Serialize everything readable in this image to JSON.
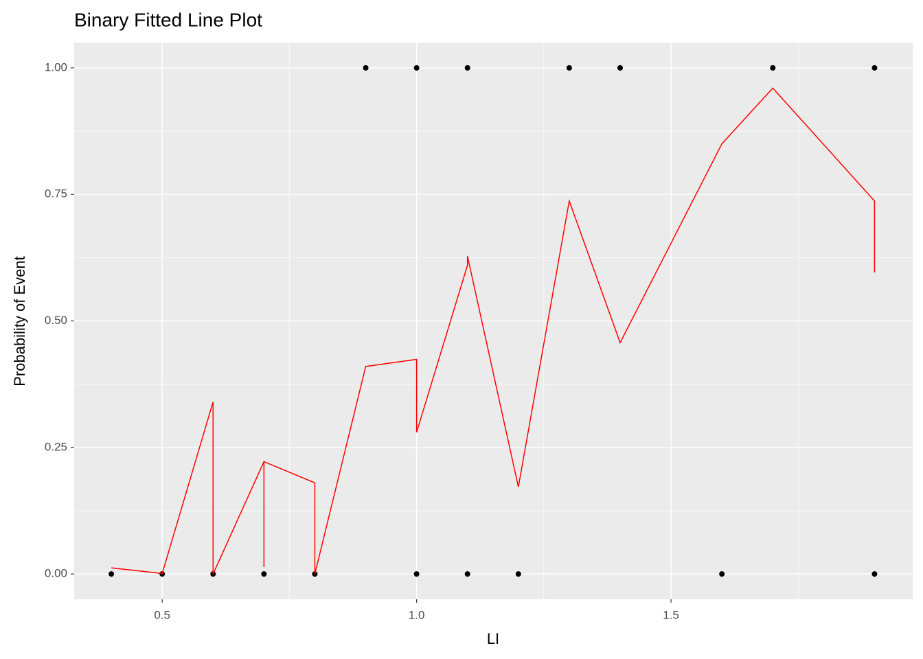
{
  "chart_data": {
    "type": "line",
    "title": "Binary Fitted Line Plot",
    "x_label": "LI",
    "y_label": "Probability of Event",
    "xlim": [
      0.327,
      1.975
    ],
    "ylim": [
      -0.05,
      1.05
    ],
    "xticks": [
      0.5,
      {
        "value": 1.0,
        "label": "1.0"
      },
      1.5
    ],
    "yticks": [
      {
        "value": 0,
        "label": "0.00"
      },
      {
        "value": 0.25,
        "label": "0.25"
      },
      {
        "value": 0.5,
        "label": "0.50"
      },
      {
        "value": 0.75,
        "label": "0.75"
      },
      {
        "value": 1,
        "label": "1.00"
      }
    ],
    "grid": true,
    "minor_grid": true,
    "series": [
      {
        "style": "points",
        "color": "#000000",
        "x": [
          0.9,
          1.0,
          1.1,
          1.3,
          1.4,
          1.7,
          1.9,
          0.4,
          0.5,
          0.6,
          0.7,
          0.8,
          1.0,
          1.1,
          1.2,
          1.6,
          1.9
        ],
        "values": [
          1,
          1,
          1,
          1,
          1,
          1,
          1,
          0,
          0,
          0,
          0,
          0,
          0,
          0,
          0,
          0,
          0
        ]
      },
      {
        "style": "line",
        "color": "#ff0000",
        "x": [
          0.4,
          0.5,
          0.6,
          0.6,
          0.7,
          0.7,
          0.7,
          0.8,
          0.8,
          0.9,
          1.0,
          1.0,
          1.1,
          1.1,
          1.2,
          1.3,
          1.4,
          1.6,
          1.7,
          1.9,
          1.9
        ],
        "values": [
          0.012,
          0.001,
          0.34,
          0.0,
          0.222,
          0.014,
          0.222,
          0.18,
          0.0,
          0.41,
          0.424,
          0.28,
          0.61,
          0.628,
          0.172,
          0.737,
          0.457,
          0.85,
          0.96,
          0.737,
          0.596
        ]
      }
    ]
  }
}
